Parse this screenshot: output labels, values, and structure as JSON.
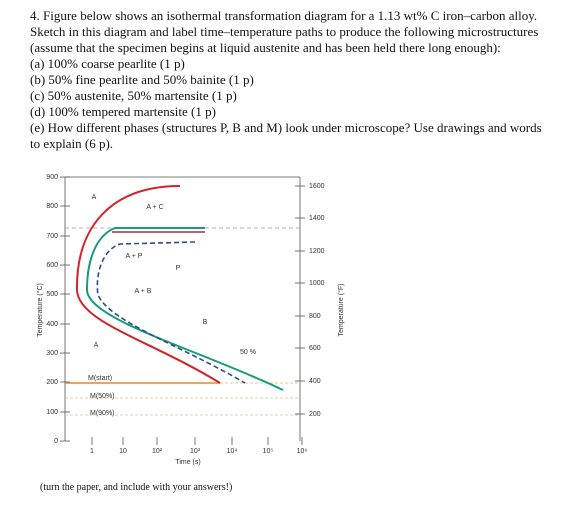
{
  "question": {
    "lines": [
      "4. Figure below shows an isothermal transformation diagram for a 1.13 wt% C iron–carbon alloy.",
      "Sketch in this diagram and label time–temperature paths to produce the following microstructures",
      "(assume that the specimen begins at liquid austenite and has been held there long enough):",
      "(a) 100% coarse pearlite (1 p)",
      "(b) 50% fine pearlite and 50% bainite (1 p)",
      "(c) 50% austenite, 50% martensite (1 p)",
      "(d) 100% tempered martensite (1 p)",
      "(e) How different phases (structures P, B and M) look under microscope? Use drawings and words",
      "to explain (6 p)."
    ]
  },
  "figure": {
    "y_ticks": [
      "900",
      "800",
      "700",
      "600",
      "500",
      "400",
      "300",
      "200",
      "100",
      "0"
    ],
    "y2_ticks": [
      "1600",
      "1400",
      "1200",
      "1000",
      "800",
      "600",
      "400",
      "200"
    ],
    "x_ticks": [
      "1",
      "10",
      "10²",
      "10³",
      "10⁴",
      "10⁵",
      "10⁶"
    ],
    "y_label": "Temperature (°C)",
    "y2_label": "Temperature (°F)",
    "x_label": "Time (s)",
    "region_labels": [
      "A",
      "A + C",
      "A + P",
      "P",
      "A + B",
      "B",
      "A",
      "50 %"
    ],
    "line_labels": [
      "M(start)",
      "M(50%)",
      "M(90%)"
    ]
  },
  "footer": "(turn the paper, and include with your answers!)"
}
